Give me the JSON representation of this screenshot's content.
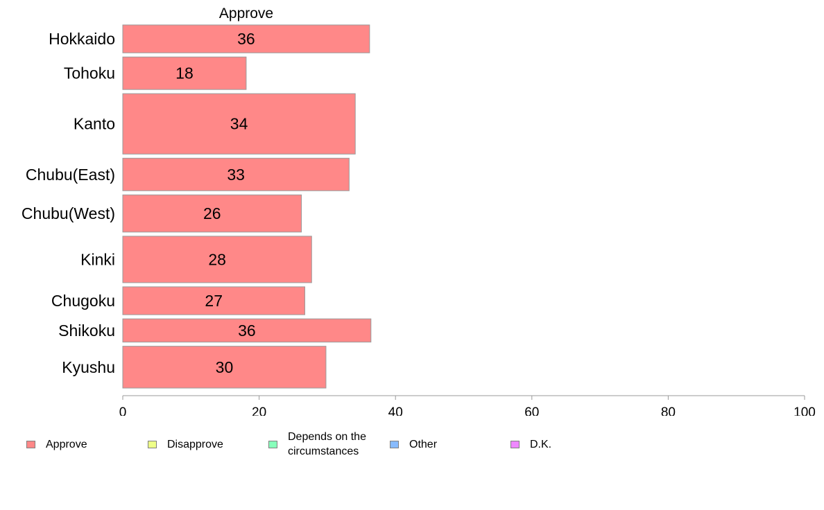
{
  "chart_data": {
    "type": "bar",
    "orientation": "horizontal",
    "title": "Approve",
    "categories": [
      "Hokkaido",
      "Tohoku",
      "Kanto",
      "Chubu(East)",
      "Chubu(West)",
      "Kinki",
      "Chugoku",
      "Shikoku",
      "Kyushu"
    ],
    "category_weights": [
      6,
      7,
      13,
      7,
      8,
      10,
      6,
      5,
      9
    ],
    "series": [
      {
        "name": "Approve",
        "values": [
          36.2,
          18.1,
          34.1,
          33.2,
          26.2,
          27.7,
          26.7,
          36.4,
          29.8
        ],
        "labels": [
          "36",
          "18",
          "34",
          "33",
          "26",
          "28",
          "27",
          "36",
          "30"
        ]
      }
    ],
    "xlim": [
      0,
      100
    ],
    "xticks": [
      0,
      20,
      40,
      60,
      80,
      100
    ],
    "grid": false,
    "legend_position": "bottom",
    "legend": [
      {
        "label": "Approve",
        "color": "#ff8888"
      },
      {
        "label": "Disapprove",
        "color": "#eeff88"
      },
      {
        "label": "Depends on the circumstances",
        "color": "#88ffbb"
      },
      {
        "label": "Other",
        "color": "#88bbff"
      },
      {
        "label": "D.K.",
        "color": "#ee88ff"
      }
    ],
    "bar_color": "#ff8888",
    "bar_border_color": "#999999",
    "axis_color": "#999999"
  }
}
